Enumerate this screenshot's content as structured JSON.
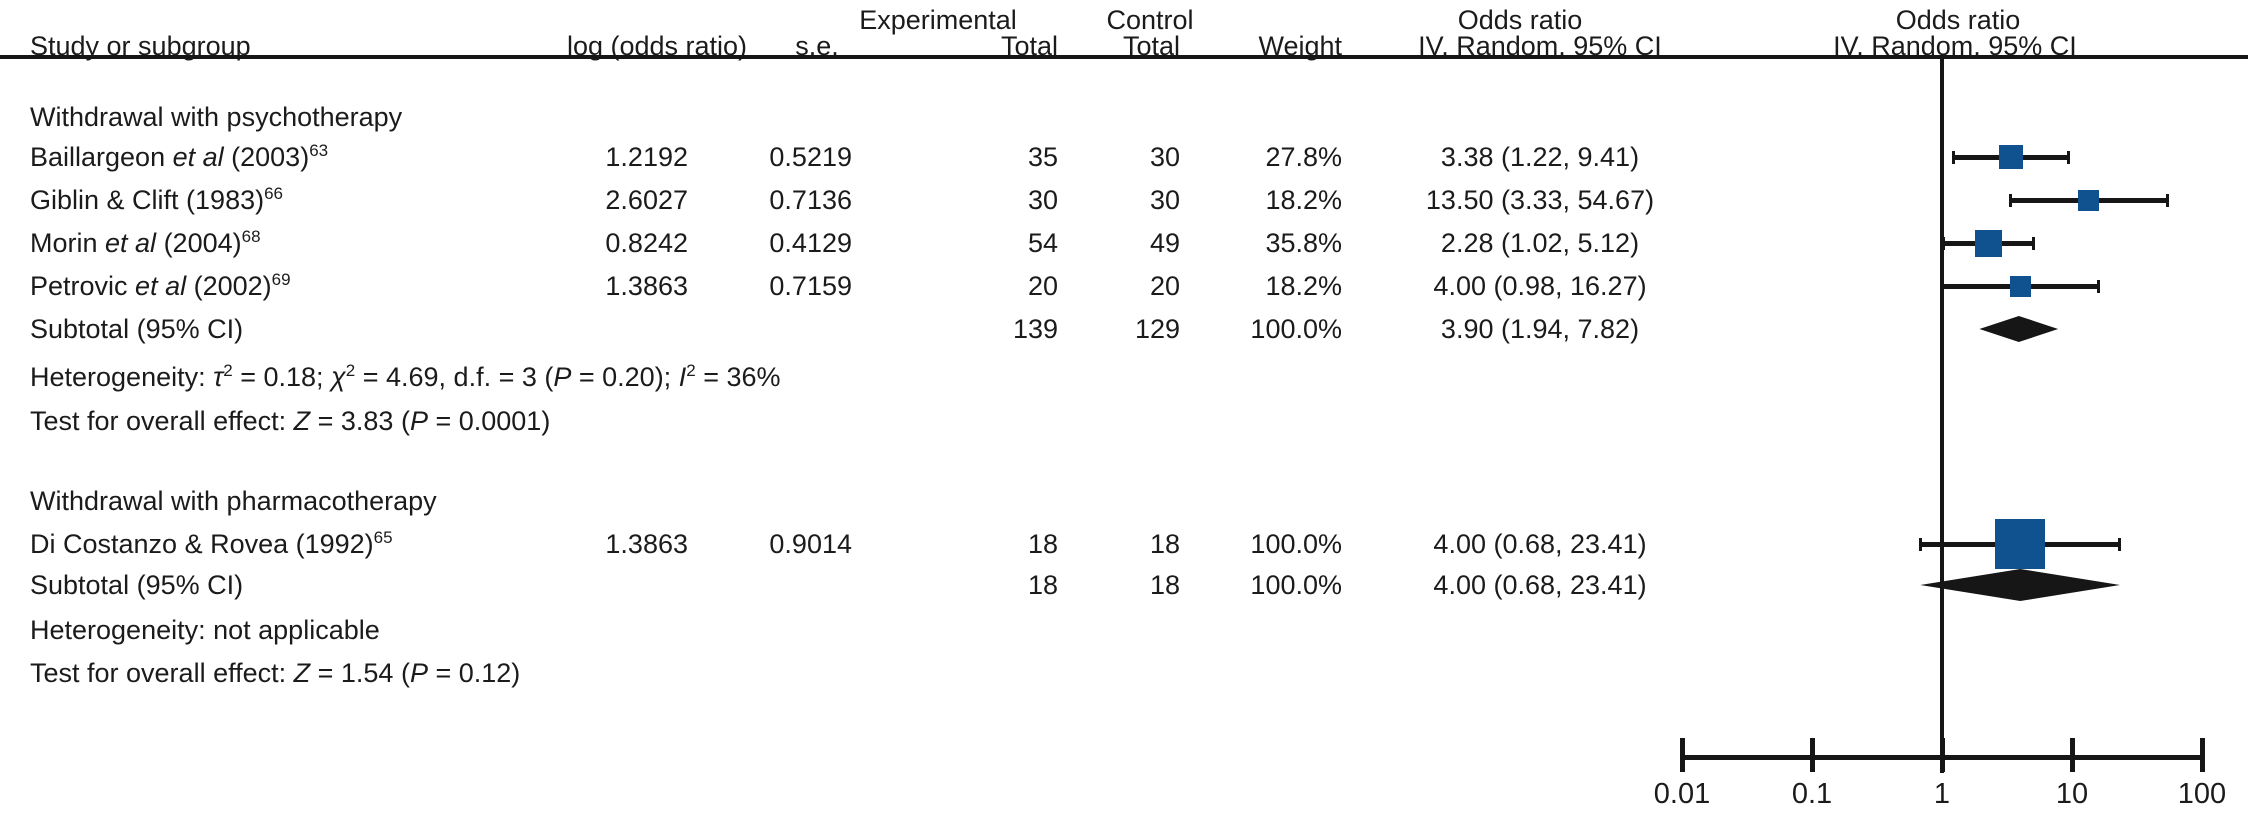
{
  "header": {
    "study": "Study or subgroup",
    "log_or": "log (odds ratio)",
    "se": "s.e.",
    "experimental": "Experimental",
    "control": "Control",
    "total_exp": "Total",
    "total_ctrl": "Total",
    "weight": "Weight",
    "odds_ratio_text": "Odds ratio",
    "iv_random_text": "IV, Random, 95% CI",
    "odds_ratio_plot": "Odds ratio",
    "iv_random_plot": "IV, Random, 95% CI"
  },
  "sections": [
    {
      "title": "Withdrawal with psychotherapy",
      "rows": [
        {
          "pre": "Baillargeon ",
          "it": "et al",
          "post": " (2003)",
          "ref": "63",
          "log_or": "1.2192",
          "se": "0.5219",
          "exp": "35",
          "ctrl": "30",
          "weight": "27.8%",
          "orci": "3.38 (1.22, 9.41)"
        },
        {
          "pre": "Giblin & Clift (1983)",
          "it": "",
          "post": "",
          "ref": "66",
          "log_or": "2.6027",
          "se": "0.7136",
          "exp": "30",
          "ctrl": "30",
          "weight": "18.2%",
          "orci": "13.50 (3.33, 54.67)"
        },
        {
          "pre": "Morin ",
          "it": "et al",
          "post": " (2004)",
          "ref": "68",
          "log_or": "0.8242",
          "se": "0.4129",
          "exp": "54",
          "ctrl": "49",
          "weight": "35.8%",
          "orci": "2.28 (1.02, 5.12)"
        },
        {
          "pre": "Petrovic ",
          "it": "et al",
          "post": " (2002)",
          "ref": "69",
          "log_or": "1.3863",
          "se": "0.7159",
          "exp": "20",
          "ctrl": "20",
          "weight": "18.2%",
          "orci": "4.00 (0.98, 16.27)"
        }
      ],
      "subtotal": {
        "label": "Subtotal (95% CI)",
        "exp": "139",
        "ctrl": "129",
        "weight": "100.0%",
        "orci": "3.90 (1.94, 7.82)"
      },
      "het": [
        "Heterogeneity: ",
        "τ",
        "2",
        " = 0.18; ",
        "χ",
        "2",
        " = 4.69, d.f. = 3 (",
        "P",
        " = 0.20); ",
        "I",
        "2",
        " = 36%"
      ],
      "test": [
        "Test for overall effect: ",
        "Z",
        " = 3.83 (",
        "P",
        " = 0.0001)"
      ]
    },
    {
      "title": "Withdrawal with pharmacotherapy",
      "rows": [
        {
          "pre": "Di Costanzo & Rovea (1992)",
          "it": "",
          "post": "",
          "ref": "65",
          "log_or": "1.3863",
          "se": "0.9014",
          "exp": "18",
          "ctrl": "18",
          "weight": "100.0%",
          "orci": "4.00 (0.68, 23.41)"
        }
      ],
      "subtotal": {
        "label": "Subtotal (95% CI)",
        "exp": "18",
        "ctrl": "18",
        "weight": "100.0%",
        "orci": "4.00 (0.68, 23.41)"
      },
      "het": [
        "Heterogeneity: not applicable"
      ],
      "test": [
        "Test for overall effect: ",
        "Z",
        " = 1.54 (",
        "P",
        " = 0.12)"
      ]
    }
  ],
  "chart_data": {
    "type": "forest",
    "x_scale": "log",
    "xlim": [
      0.01,
      100
    ],
    "x_tick_values": [
      0.01,
      0.1,
      1,
      10,
      100
    ],
    "x_tick_labels": [
      "0.01",
      "0.1",
      "1",
      "10",
      "100"
    ],
    "ref_line": 1,
    "effect_label": "Odds ratio, IV, Random, 95% CI",
    "marker_color": "#10528f",
    "summary_color": "#161616",
    "groups": [
      {
        "label": "Withdrawal with psychotherapy",
        "studies": [
          {
            "label": "Baillargeon et al (2003)",
            "est": 3.38,
            "lo": 1.22,
            "hi": 9.41,
            "weight_pct": 27.8
          },
          {
            "label": "Giblin & Clift (1983)",
            "est": 13.5,
            "lo": 3.33,
            "hi": 54.67,
            "weight_pct": 18.2
          },
          {
            "label": "Morin et al (2004)",
            "est": 2.28,
            "lo": 1.02,
            "hi": 5.12,
            "weight_pct": 35.8
          },
          {
            "label": "Petrovic et al (2002)",
            "est": 4.0,
            "lo": 0.98,
            "hi": 16.27,
            "weight_pct": 18.2
          }
        ],
        "subtotal": {
          "est": 3.9,
          "lo": 1.94,
          "hi": 7.82,
          "weight_pct": 100.0
        }
      },
      {
        "label": "Withdrawal with pharmacotherapy",
        "studies": [
          {
            "label": "Di Costanzo & Rovea (1992)",
            "est": 4.0,
            "lo": 0.68,
            "hi": 23.41,
            "weight_pct": 100.0
          }
        ],
        "subtotal": {
          "est": 4.0,
          "lo": 0.68,
          "hi": 23.41,
          "weight_pct": 100.0
        }
      }
    ]
  }
}
